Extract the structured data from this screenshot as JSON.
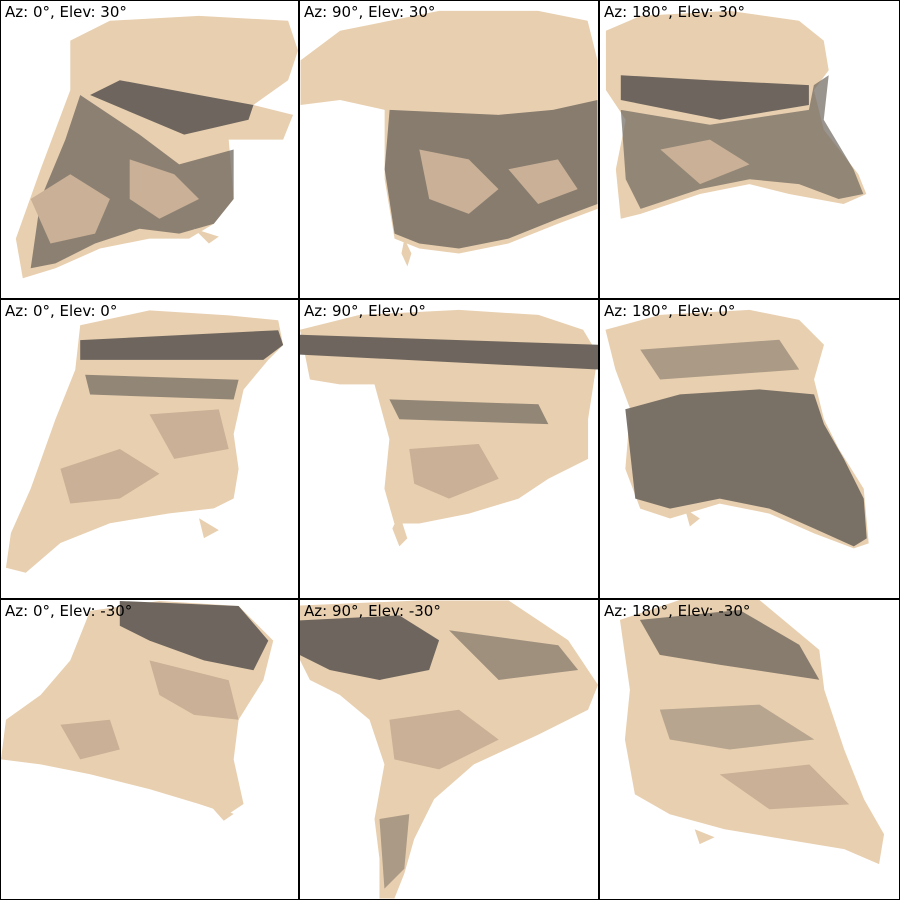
{
  "panels": [
    {
      "label": "Az: 0°, Elev: 30°"
    },
    {
      "label": "Az: 90°, Elev: 30°"
    },
    {
      "label": "Az: 180°, Elev: 30°"
    },
    {
      "label": "Az: 0°, Elev: 0°"
    },
    {
      "label": "Az: 90°, Elev: 0°"
    },
    {
      "label": "Az: 180°, Elev: 0°"
    },
    {
      "label": "Az: 0°, Elev: -30°"
    },
    {
      "label": "Az: 90°, Elev: -30°"
    },
    {
      "label": "Az: 180°, Elev: -30°"
    }
  ],
  "colors": {
    "light": "#e8cfaf",
    "mid": "#c9b096",
    "dark": "#6e665e",
    "background": "#ffffff",
    "border": "#000000"
  }
}
